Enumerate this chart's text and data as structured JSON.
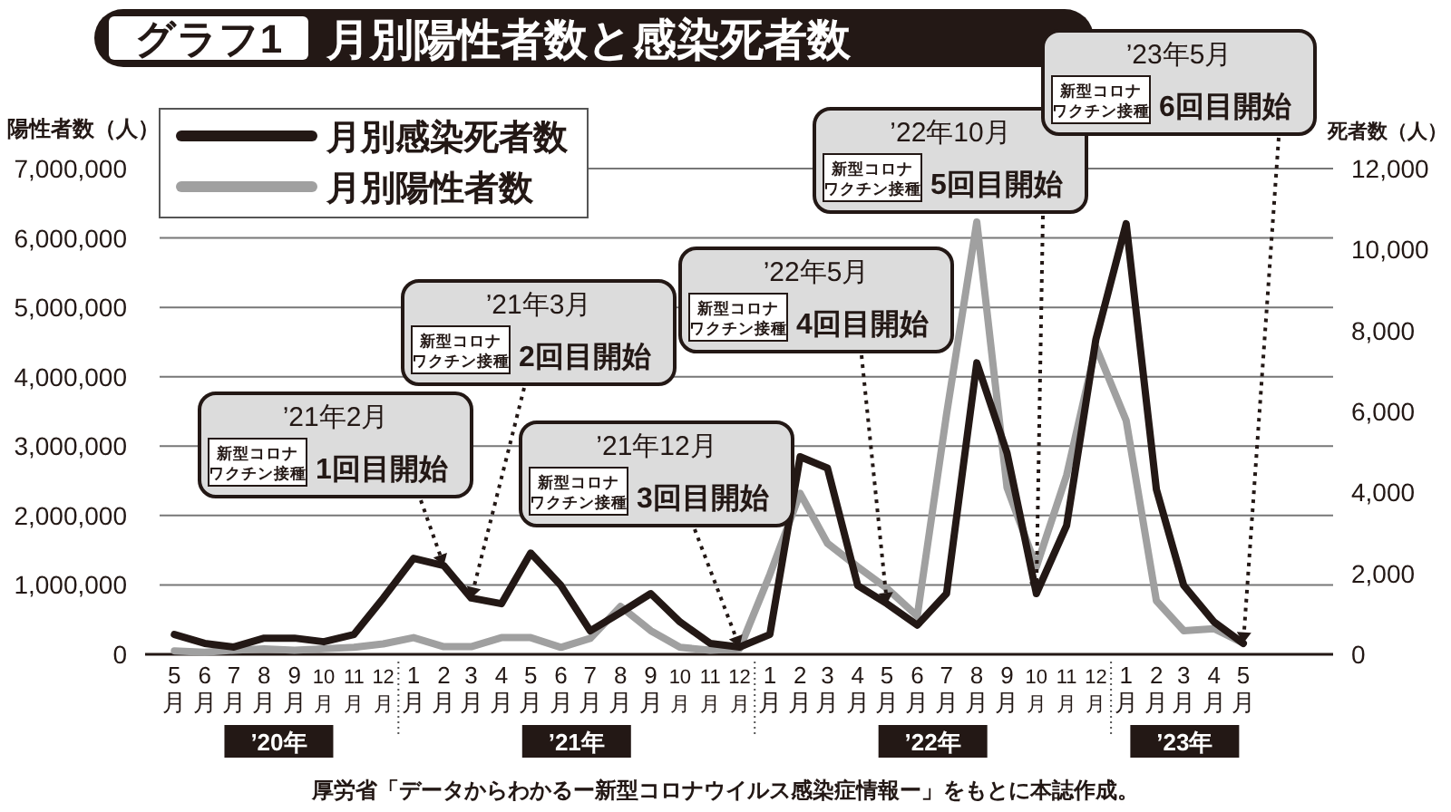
{
  "chart_data": {
    "type": "line",
    "title": "グラフ1 月別陽性者数と感染死者数",
    "ylabel": "陽性者数（人）",
    "y2label": "死者数（人）",
    "x": [
      "2020-05",
      "2020-06",
      "2020-07",
      "2020-08",
      "2020-09",
      "2020-10",
      "2020-11",
      "2020-12",
      "2021-01",
      "2021-02",
      "2021-03",
      "2021-04",
      "2021-05",
      "2021-06",
      "2021-07",
      "2021-08",
      "2021-09",
      "2021-10",
      "2021-11",
      "2021-12",
      "2022-01",
      "2022-02",
      "2022-03",
      "2022-04",
      "2022-05",
      "2022-06",
      "2022-07",
      "2022-08",
      "2022-09",
      "2022-10",
      "2022-11",
      "2022-12",
      "2023-01",
      "2023-02",
      "2023-03",
      "2023-04",
      "2023-05"
    ],
    "series": [
      {
        "name": "月別感染死者数",
        "color": "#231815",
        "axis": "y2",
        "values": [
          490,
          270,
          180,
          400,
          400,
          310,
          490,
          1390,
          2370,
          2190,
          1390,
          1250,
          2500,
          1700,
          580,
          1030,
          1500,
          800,
          270,
          180,
          490,
          4880,
          4600,
          1700,
          1250,
          720,
          1500,
          7200,
          4970,
          1500,
          3180,
          7780,
          10640,
          4070,
          1700,
          800,
          270
        ]
      },
      {
        "name": "月別陽性者数",
        "color": "#a0a0a0",
        "values": [
          50000,
          30000,
          60000,
          80000,
          60000,
          80000,
          100000,
          150000,
          240000,
          110000,
          110000,
          240000,
          240000,
          100000,
          230000,
          690000,
          340000,
          100000,
          60000,
          80000,
          1150000,
          2320000,
          1600000,
          1260000,
          950000,
          550000,
          3460000,
          6230000,
          2400000,
          1260000,
          2580000,
          4430000,
          3370000,
          770000,
          340000,
          370000,
          160000
        ]
      }
    ],
    "xlim": [
      "2020-04",
      "2023-08"
    ],
    "xticks": [
      {
        "value": "2020-05",
        "label": "5月"
      },
      {
        "value": "2020-06",
        "label": "6月"
      },
      {
        "value": "2020-07",
        "label": "7月"
      },
      {
        "value": "2020-08",
        "label": "8月"
      },
      {
        "value": "2020-09",
        "label": "9月"
      },
      {
        "value": "2020-10",
        "label": "10月"
      },
      {
        "value": "2020-11",
        "label": "11月"
      },
      {
        "value": "2020-12",
        "label": "12月"
      },
      {
        "value": "2021-01",
        "label": "1月"
      },
      {
        "value": "2021-02",
        "label": "2月"
      },
      {
        "value": "2021-03",
        "label": "3月"
      },
      {
        "value": "2021-04",
        "label": "4月"
      },
      {
        "value": "2021-05",
        "label": "5月"
      },
      {
        "value": "2021-06",
        "label": "6月"
      },
      {
        "value": "2021-07",
        "label": "7月"
      },
      {
        "value": "2021-08",
        "label": "8月"
      },
      {
        "value": "2021-09",
        "label": "9月"
      },
      {
        "value": "2021-10",
        "label": "10月"
      },
      {
        "value": "2021-11",
        "label": "11月"
      },
      {
        "value": "2021-12",
        "label": "12月"
      },
      {
        "value": "2022-01",
        "label": "1月"
      },
      {
        "value": "2022-02",
        "label": "2月"
      },
      {
        "value": "2022-03",
        "label": "3月"
      },
      {
        "value": "2022-04",
        "label": "4月"
      },
      {
        "value": "2022-05",
        "label": "5月"
      },
      {
        "value": "2022-06",
        "label": "6月"
      },
      {
        "value": "2022-07",
        "label": "7月"
      },
      {
        "value": "2022-08",
        "label": "8月"
      },
      {
        "value": "2022-09",
        "label": "9月"
      },
      {
        "value": "2022-10",
        "label": "10月"
      },
      {
        "value": "2022-11",
        "label": "11月"
      },
      {
        "value": "2022-12",
        "label": "12月"
      },
      {
        "value": "2023-01",
        "label": "1月"
      },
      {
        "value": "2023-02",
        "label": "2月"
      },
      {
        "value": "2023-03",
        "label": "3月"
      },
      {
        "value": "2023-04",
        "label": "4月"
      },
      {
        "value": "2023-05",
        "label": "5月"
      }
    ],
    "ylim": [
      0,
      7000000
    ],
    "yticks": [
      {
        "value": 0,
        "label": "0"
      },
      {
        "value": 1000000,
        "label": "1,000,000"
      },
      {
        "value": 2000000,
        "label": "2,000,000"
      },
      {
        "value": 3000000,
        "label": "3,000,000"
      },
      {
        "value": 4000000,
        "label": "4,000,000"
      },
      {
        "value": 5000000,
        "label": "5,000,000"
      },
      {
        "value": 6000000,
        "label": "6,000,000"
      },
      {
        "value": 7000000,
        "label": "7,000,000"
      }
    ],
    "y2lim": [
      0,
      12000
    ],
    "y2ticks": [
      {
        "value": 0,
        "label": "0"
      },
      {
        "value": 2000,
        "label": "2,000"
      },
      {
        "value": 4000,
        "label": "4,000"
      },
      {
        "value": 6000,
        "label": "6,000"
      },
      {
        "value": 8000,
        "label": "8,000"
      },
      {
        "value": 10000,
        "label": "10,000"
      },
      {
        "value": 12000,
        "label": "12,000"
      }
    ],
    "grid": "y",
    "legend": "top left",
    "line_style": "solid",
    "annotations": [
      "’21年2月",
      "新型コロナワクチン接種",
      {
        "text": "1回目開始",
        "x": "2021-02",
        "y": 1280000
      },
      "’21年3月",
      "新型コロナワクチン接種",
      {
        "text": "2回目開始",
        "x": "2021-03",
        "y": 810000
      },
      "’21年12月",
      "新型コロナワクチン接種",
      {
        "text": "3回目開始",
        "x": "2021-12",
        "y": 105000
      },
      "’22年5月",
      "新型コロナワクチン接種",
      {
        "text": "4回目開始",
        "x": "2022-05",
        "y": 730000
      },
      "’22年10月",
      "新型コロナワクチン接種",
      {
        "text": "5回目開始",
        "x": "2022-10",
        "y": 880000
      },
      "’23年5月",
      "新型コロナワクチン接種",
      {
        "text": "6回目開始",
        "x": "2023-05",
        "y": 160000
      },
      "’20年",
      "’21年",
      "’22年",
      "’23年",
      "厚労省「データからわかるー新型コロナウイルス感染症情報ー」をもとに本誌作成。"
    ]
  }
}
